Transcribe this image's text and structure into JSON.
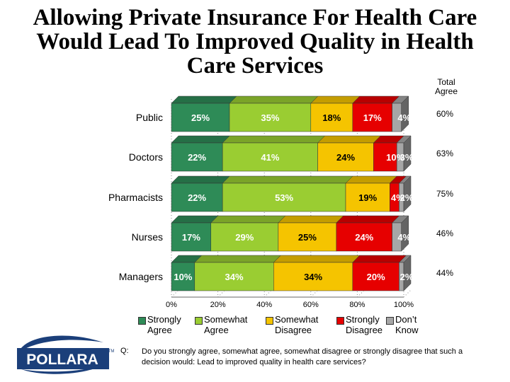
{
  "page": {
    "title": "Allowing Private Insurance For Health Care Would Lead To Improved Quality in Health Care Services",
    "total_agree_label": "Total Agree",
    "logo_text": "POLLARA",
    "logo_tm": "TM",
    "question_label": "Q:",
    "question_text": "Do you strongly agree, somewhat agree, somewhat disagree or strongly disagree that such a decision would: Lead to improved quality in health care services?"
  },
  "chart_data": {
    "type": "bar",
    "orientation": "horizontal",
    "stacked": true,
    "title": "Allowing Private Insurance For Health Care Would Lead To Improved Quality in Health Care Services",
    "categories": [
      "Public",
      "Doctors",
      "Pharmacists",
      "Nurses",
      "Managers"
    ],
    "series": [
      {
        "name": "Strongly Agree",
        "color": "#2e8b57",
        "values": [
          25,
          22,
          22,
          17,
          10
        ]
      },
      {
        "name": "Somewhat Agree",
        "color": "#9acd32",
        "values": [
          35,
          41,
          53,
          29,
          34
        ]
      },
      {
        "name": "Somewhat Disagree",
        "color": "#f5c400",
        "values": [
          18,
          24,
          19,
          25,
          34
        ]
      },
      {
        "name": "Strongly Disagree",
        "color": "#e60000",
        "values": [
          17,
          10,
          4,
          24,
          20
        ]
      },
      {
        "name": "Don't Know",
        "color": "#a6a6a6",
        "values": [
          4,
          3,
          2,
          4,
          2
        ]
      }
    ],
    "legend_labels": [
      {
        "line1": "Strongly",
        "line2": "Agree"
      },
      {
        "line1": "Somewhat",
        "line2": "Agree"
      },
      {
        "line1": "Somewhat",
        "line2": "Disagree"
      },
      {
        "line1": "Strongly",
        "line2": "Disagree"
      },
      {
        "line1": "Don’t",
        "line2": "Know"
      }
    ],
    "total_agree": [
      60,
      63,
      75,
      46,
      44
    ],
    "x_ticks": [
      "0%",
      "20%",
      "40%",
      "60%",
      "80%",
      "100%"
    ],
    "xlim": [
      0,
      100
    ],
    "xlabel": "",
    "ylabel": "",
    "grid": "vertical dotted",
    "legend": "bottom"
  }
}
